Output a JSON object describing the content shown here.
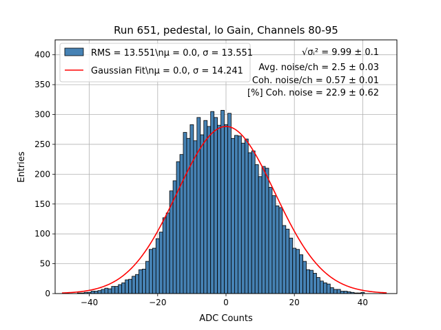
{
  "chart_data": {
    "type": "bar",
    "title": "Run 651, pedestal, lo Gain, Channels 80-95",
    "xlabel": "ADC Counts",
    "ylabel": "Entries",
    "xlim": [
      -50,
      50
    ],
    "ylim": [
      0,
      425
    ],
    "xticks": [
      -40,
      -20,
      0,
      20,
      40
    ],
    "yticks": [
      0,
      50,
      100,
      150,
      200,
      250,
      300,
      350,
      400
    ],
    "xtick_labels": [
      "−40",
      "−20",
      "0",
      "20",
      "40"
    ],
    "ytick_labels": [
      "0",
      "50",
      "100",
      "150",
      "200",
      "250",
      "300",
      "350",
      "400"
    ],
    "grid": true,
    "legend_position": "top-left",
    "bin_width": 1,
    "x": [
      -48,
      -47,
      -46,
      -45,
      -44,
      -43,
      -42,
      -41,
      -40,
      -39,
      -38,
      -37,
      -36,
      -35,
      -34,
      -33,
      -32,
      -31,
      -30,
      -29,
      -28,
      -27,
      -26,
      -25,
      -24,
      -23,
      -22,
      -21,
      -20,
      -19,
      -18,
      -17,
      -16,
      -15,
      -14,
      -13,
      -12,
      -11,
      -10,
      -9,
      -8,
      -7,
      -6,
      -5,
      -4,
      -3,
      -2,
      -1,
      0,
      1,
      2,
      3,
      4,
      5,
      6,
      7,
      8,
      9,
      10,
      11,
      12,
      13,
      14,
      15,
      16,
      17,
      18,
      19,
      20,
      21,
      22,
      23,
      24,
      25,
      26,
      27,
      28,
      29,
      30,
      31,
      32,
      33,
      34,
      35,
      36,
      37,
      38,
      39,
      40,
      41,
      42,
      43,
      44,
      45,
      46,
      47
    ],
    "series": [
      {
        "name": "RMS = 13.551\\nμ = 0.0, σ = 13.551",
        "color": "#4682b4",
        "values": [
          0,
          0,
          0,
          0,
          0,
          1,
          1,
          2,
          2,
          4,
          4,
          5,
          7,
          9,
          8,
          12,
          12,
          15,
          18,
          23,
          24,
          29,
          32,
          40,
          41,
          54,
          74,
          76,
          92,
          103,
          127,
          135,
          172,
          189,
          221,
          233,
          270,
          260,
          283,
          256,
          295,
          266,
          290,
          280,
          305,
          295,
          282,
          307,
          283,
          302,
          260,
          265,
          264,
          252,
          259,
          236,
          239,
          216,
          196,
          213,
          210,
          178,
          164,
          147,
          144,
          114,
          108,
          93,
          76,
          74,
          65,
          54,
          40,
          39,
          34,
          27,
          21,
          18,
          16,
          10,
          7,
          7,
          4,
          4,
          3,
          2,
          1,
          1,
          2,
          0,
          0,
          0,
          0,
          0,
          0,
          0
        ]
      }
    ],
    "fit": {
      "name": "Gaussian Fit\\nμ = 0.0, σ = 14.241",
      "color": "#ff0000",
      "type": "gaussian",
      "mu": 0.0,
      "sigma": 14.241,
      "amplitude": 280,
      "x_range": [
        -48,
        47
      ]
    },
    "annotations": [
      "√σᵢ² = 9.99 ± 0.1",
      "Avg. noise/ch = 2.5 ± 0.03",
      "Coh. noise/ch = 0.57 ± 0.01",
      "[%] Coh. noise = 22.9 ± 0.62"
    ]
  }
}
